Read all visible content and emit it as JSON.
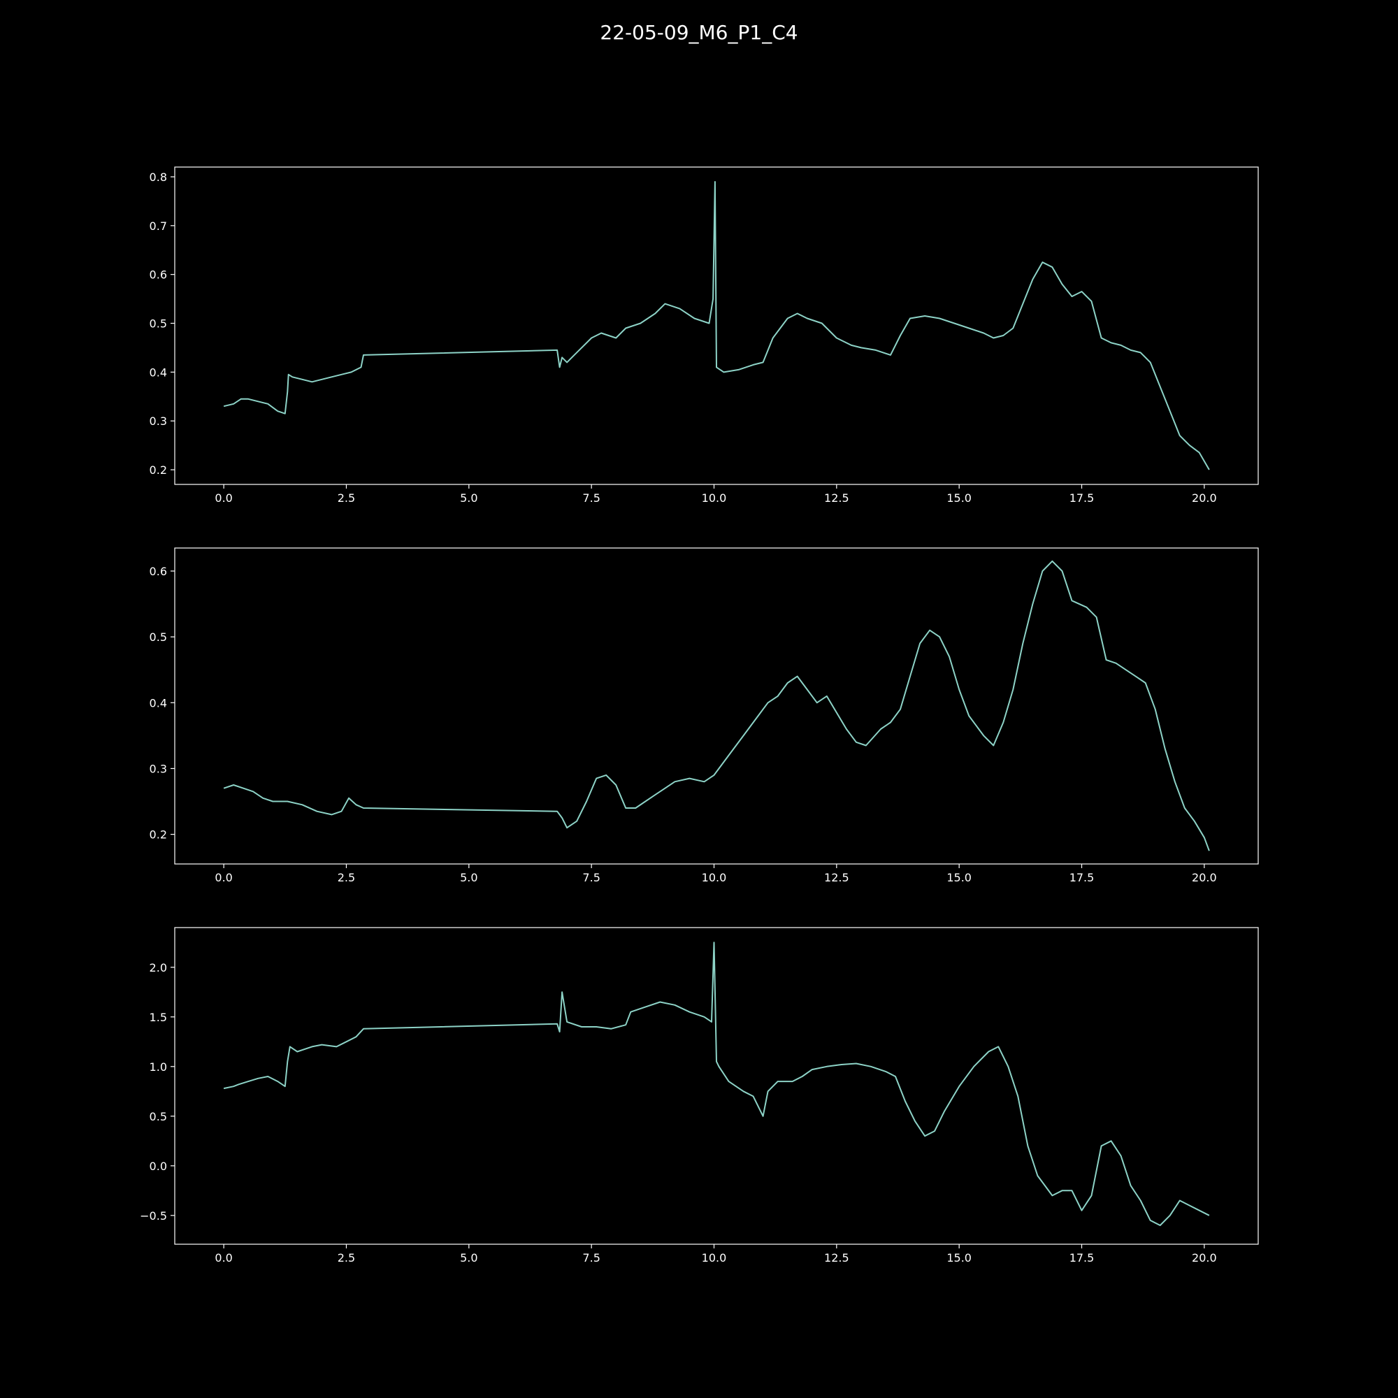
{
  "figure": {
    "title": "22-05-09_M6_P1_C4",
    "background": "#000000",
    "foreground": "#ffffff",
    "line_color": "#8dd3c7"
  },
  "chart_data": [
    {
      "type": "line",
      "title": "",
      "xlabel": "",
      "ylabel": "",
      "xlim": [
        -1.0,
        21.1
      ],
      "ylim": [
        0.17,
        0.82
      ],
      "xticks": [
        0.0,
        2.5,
        5.0,
        7.5,
        10.0,
        12.5,
        15.0,
        17.5,
        20.0
      ],
      "xtick_labels": [
        "0.0",
        "2.5",
        "5.0",
        "7.5",
        "10.0",
        "12.5",
        "15.0",
        "17.5",
        "20.0"
      ],
      "yticks": [
        0.2,
        0.3,
        0.4,
        0.5,
        0.6,
        0.7,
        0.8
      ],
      "ytick_labels": [
        "0.2",
        "0.3",
        "0.4",
        "0.5",
        "0.6",
        "0.7",
        "0.8"
      ],
      "grid": false,
      "series": [
        {
          "x": [
            0.0,
            0.2,
            0.35,
            0.5,
            0.7,
            0.9,
            1.1,
            1.25,
            1.3,
            1.32,
            1.4,
            1.6,
            1.8,
            2.0,
            2.2,
            2.4,
            2.6,
            2.8,
            2.85,
            6.8,
            6.85,
            6.9,
            7.0,
            7.2,
            7.5,
            7.7,
            8.0,
            8.2,
            8.5,
            8.8,
            9.0,
            9.3,
            9.6,
            9.9,
            9.98,
            10.02,
            10.05,
            10.2,
            10.5,
            10.8,
            11.0,
            11.2,
            11.5,
            11.7,
            11.9,
            12.2,
            12.5,
            12.8,
            13.0,
            13.3,
            13.6,
            13.8,
            14.0,
            14.3,
            14.6,
            14.9,
            15.2,
            15.5,
            15.7,
            15.9,
            16.1,
            16.3,
            16.5,
            16.7,
            16.9,
            17.1,
            17.3,
            17.5,
            17.7,
            17.9,
            18.1,
            18.3,
            18.5,
            18.7,
            18.9,
            19.1,
            19.3,
            19.5,
            19.7,
            19.9,
            20.1
          ],
          "y": [
            0.33,
            0.335,
            0.345,
            0.345,
            0.34,
            0.335,
            0.32,
            0.315,
            0.36,
            0.395,
            0.39,
            0.385,
            0.38,
            0.385,
            0.39,
            0.395,
            0.4,
            0.41,
            0.435,
            0.445,
            0.41,
            0.43,
            0.42,
            0.44,
            0.47,
            0.48,
            0.47,
            0.49,
            0.5,
            0.52,
            0.54,
            0.53,
            0.51,
            0.5,
            0.55,
            0.79,
            0.41,
            0.4,
            0.405,
            0.415,
            0.42,
            0.47,
            0.51,
            0.52,
            0.51,
            0.5,
            0.47,
            0.455,
            0.45,
            0.445,
            0.435,
            0.475,
            0.51,
            0.515,
            0.51,
            0.5,
            0.49,
            0.48,
            0.47,
            0.475,
            0.49,
            0.54,
            0.59,
            0.625,
            0.615,
            0.58,
            0.555,
            0.565,
            0.545,
            0.47,
            0.46,
            0.455,
            0.445,
            0.44,
            0.42,
            0.37,
            0.32,
            0.27,
            0.25,
            0.235,
            0.2
          ]
        }
      ]
    },
    {
      "type": "line",
      "title": "",
      "xlabel": "",
      "ylabel": "",
      "xlim": [
        -1.0,
        21.1
      ],
      "ylim": [
        0.155,
        0.635
      ],
      "xticks": [
        0.0,
        2.5,
        5.0,
        7.5,
        10.0,
        12.5,
        15.0,
        17.5,
        20.0
      ],
      "xtick_labels": [
        "0.0",
        "2.5",
        "5.0",
        "7.5",
        "10.0",
        "12.5",
        "15.0",
        "17.5",
        "20.0"
      ],
      "yticks": [
        0.2,
        0.3,
        0.4,
        0.5,
        0.6
      ],
      "ytick_labels": [
        "0.2",
        "0.3",
        "0.4",
        "0.5",
        "0.6"
      ],
      "grid": false,
      "series": [
        {
          "x": [
            0.0,
            0.2,
            0.4,
            0.6,
            0.8,
            1.0,
            1.3,
            1.6,
            1.9,
            2.2,
            2.4,
            2.55,
            2.7,
            2.85,
            6.8,
            6.9,
            7.0,
            7.2,
            7.4,
            7.6,
            7.8,
            8.0,
            8.2,
            8.4,
            8.6,
            8.8,
            9.0,
            9.2,
            9.5,
            9.8,
            10.0,
            10.3,
            10.6,
            10.9,
            11.1,
            11.3,
            11.5,
            11.7,
            11.9,
            12.1,
            12.3,
            12.5,
            12.7,
            12.9,
            13.1,
            13.4,
            13.6,
            13.8,
            14.0,
            14.2,
            14.4,
            14.6,
            14.8,
            15.0,
            15.2,
            15.5,
            15.7,
            15.9,
            16.1,
            16.3,
            16.5,
            16.7,
            16.9,
            17.1,
            17.3,
            17.6,
            17.8,
            18.0,
            18.2,
            18.4,
            18.6,
            18.8,
            19.0,
            19.2,
            19.4,
            19.6,
            19.8,
            20.0,
            20.1
          ],
          "y": [
            0.27,
            0.275,
            0.27,
            0.265,
            0.255,
            0.25,
            0.25,
            0.245,
            0.235,
            0.23,
            0.235,
            0.255,
            0.245,
            0.24,
            0.235,
            0.225,
            0.21,
            0.22,
            0.25,
            0.285,
            0.29,
            0.275,
            0.24,
            0.24,
            0.25,
            0.26,
            0.27,
            0.28,
            0.285,
            0.28,
            0.29,
            0.32,
            0.35,
            0.38,
            0.4,
            0.41,
            0.43,
            0.44,
            0.42,
            0.4,
            0.41,
            0.385,
            0.36,
            0.34,
            0.335,
            0.36,
            0.37,
            0.39,
            0.44,
            0.49,
            0.51,
            0.5,
            0.47,
            0.42,
            0.38,
            0.35,
            0.335,
            0.37,
            0.42,
            0.49,
            0.55,
            0.6,
            0.615,
            0.6,
            0.555,
            0.545,
            0.53,
            0.465,
            0.46,
            0.45,
            0.44,
            0.43,
            0.39,
            0.33,
            0.28,
            0.24,
            0.22,
            0.195,
            0.175
          ]
        }
      ]
    },
    {
      "type": "line",
      "title": "",
      "xlabel": "",
      "ylabel": "",
      "xlim": [
        -1.0,
        21.1
      ],
      "ylim": [
        -0.79,
        2.4
      ],
      "xticks": [
        0.0,
        2.5,
        5.0,
        7.5,
        10.0,
        12.5,
        15.0,
        17.5,
        20.0
      ],
      "xtick_labels": [
        "0.0",
        "2.5",
        "5.0",
        "7.5",
        "10.0",
        "12.5",
        "15.0",
        "17.5",
        "20.0"
      ],
      "yticks": [
        -0.5,
        0.0,
        0.5,
        1.0,
        1.5,
        2.0
      ],
      "ytick_labels": [
        "−0.5",
        "0.0",
        "0.5",
        "1.0",
        "1.5",
        "2.0"
      ],
      "grid": false,
      "series": [
        {
          "x": [
            0.0,
            0.2,
            0.3,
            0.5,
            0.7,
            0.9,
            1.1,
            1.25,
            1.3,
            1.35,
            1.5,
            1.8,
            2.0,
            2.3,
            2.5,
            2.7,
            2.85,
            6.8,
            6.85,
            6.9,
            7.0,
            7.3,
            7.6,
            7.9,
            8.2,
            8.3,
            8.6,
            8.9,
            9.2,
            9.5,
            9.8,
            9.95,
            10.0,
            10.05,
            10.1,
            10.3,
            10.6,
            10.8,
            11.0,
            11.1,
            11.3,
            11.6,
            11.8,
            12.0,
            12.3,
            12.6,
            12.9,
            13.2,
            13.5,
            13.7,
            13.9,
            14.1,
            14.3,
            14.5,
            14.7,
            15.0,
            15.3,
            15.6,
            15.8,
            16.0,
            16.2,
            16.4,
            16.6,
            16.9,
            17.1,
            17.3,
            17.5,
            17.7,
            17.9,
            18.1,
            18.3,
            18.5,
            18.7,
            18.9,
            19.1,
            19.3,
            19.5,
            19.7,
            19.9,
            20.1
          ],
          "y": [
            0.78,
            0.8,
            0.82,
            0.85,
            0.88,
            0.9,
            0.85,
            0.8,
            1.05,
            1.2,
            1.15,
            1.2,
            1.22,
            1.2,
            1.25,
            1.3,
            1.38,
            1.43,
            1.35,
            1.75,
            1.45,
            1.4,
            1.4,
            1.38,
            1.42,
            1.55,
            1.6,
            1.65,
            1.62,
            1.55,
            1.5,
            1.45,
            2.25,
            1.05,
            1.0,
            0.85,
            0.75,
            0.7,
            0.5,
            0.75,
            0.85,
            0.85,
            0.9,
            0.97,
            1.0,
            1.02,
            1.03,
            1.0,
            0.95,
            0.9,
            0.65,
            0.45,
            0.3,
            0.35,
            0.55,
            0.8,
            1.0,
            1.15,
            1.2,
            1.0,
            0.7,
            0.2,
            -0.1,
            -0.3,
            -0.25,
            -0.25,
            -0.45,
            -0.3,
            0.2,
            0.25,
            0.1,
            -0.2,
            -0.35,
            -0.55,
            -0.6,
            -0.5,
            -0.35,
            -0.4,
            -0.45,
            -0.5
          ]
        }
      ]
    }
  ]
}
